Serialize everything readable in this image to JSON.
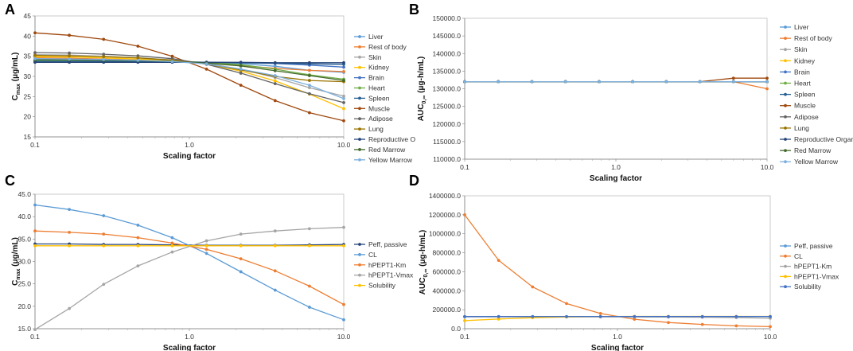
{
  "chart_data": [
    {
      "id": "A",
      "panel_label": "A",
      "type": "line",
      "xlabel": "Scaling factor",
      "ylabel": "Cmax (μg/mL)",
      "ylabel_parts": {
        "main": "C",
        "sub": "max",
        "rest": " (μg/mL)"
      },
      "x_scale": "log",
      "xlim": [
        0.1,
        10
      ],
      "ylim": [
        15,
        45
      ],
      "x_ticks": [
        0.1,
        1,
        10
      ],
      "x_tick_labels": [
        "0.1",
        "1.0",
        "10.0"
      ],
      "y_ticks": [
        15,
        20,
        25,
        30,
        35,
        40,
        45
      ],
      "y_tick_labels": [
        "15",
        "20",
        "25",
        "30",
        "35",
        "40",
        "45"
      ],
      "x": [
        0.1,
        0.1668,
        0.2783,
        0.4642,
        0.7743,
        1.2915,
        2.1544,
        3.5938,
        5.9948,
        10.0
      ],
      "series": [
        {
          "name": "Liver",
          "color": "#5B9BD5",
          "values": [
            33.8,
            33.8,
            33.8,
            33.7,
            33.6,
            33.5,
            33.2,
            32.5,
            31.5,
            31.0
          ]
        },
        {
          "name": "Rest of body",
          "color": "#ED7D31",
          "values": [
            34.6,
            34.5,
            34.3,
            34.1,
            33.8,
            33.4,
            32.7,
            32.0,
            31.5,
            31.2
          ]
        },
        {
          "name": "Skin",
          "color": "#A5A5A5",
          "values": [
            35.4,
            35.3,
            35.0,
            34.6,
            34.1,
            33.2,
            31.8,
            29.7,
            27.2,
            25.1
          ]
        },
        {
          "name": "Kidney",
          "color": "#FFC000",
          "values": [
            34.9,
            34.8,
            34.6,
            34.3,
            33.9,
            33.1,
            31.3,
            28.9,
            25.6,
            22.0
          ]
        },
        {
          "name": "Brain",
          "color": "#4472C4",
          "values": [
            33.6,
            33.6,
            33.6,
            33.6,
            33.6,
            33.5,
            33.4,
            33.2,
            32.8,
            32.3
          ]
        },
        {
          "name": "Heart",
          "color": "#70AD47",
          "values": [
            34.0,
            34.0,
            34.0,
            33.9,
            33.8,
            33.5,
            32.9,
            31.8,
            30.4,
            29.3
          ]
        },
        {
          "name": "Spleen",
          "color": "#255E91",
          "values": [
            33.7,
            33.7,
            33.7,
            33.7,
            33.6,
            33.5,
            33.4,
            33.3,
            33.1,
            33.0
          ]
        },
        {
          "name": "Muscle",
          "color": "#9E480E",
          "values": [
            40.8,
            40.2,
            39.2,
            37.5,
            35.0,
            31.8,
            27.8,
            24.0,
            21.0,
            19.0
          ]
        },
        {
          "name": "Adipose",
          "color": "#636363",
          "values": [
            35.9,
            35.8,
            35.5,
            35.1,
            34.4,
            33.0,
            30.8,
            28.2,
            25.7,
            23.5
          ]
        },
        {
          "name": "Lung",
          "color": "#997300",
          "values": [
            35.2,
            35.1,
            34.9,
            34.6,
            34.0,
            33.1,
            31.6,
            30.0,
            29.0,
            28.7
          ]
        },
        {
          "name": "Reproductive O",
          "color": "#264478",
          "values": [
            33.5,
            33.5,
            33.5,
            33.5,
            33.5,
            33.5,
            33.5,
            33.4,
            33.4,
            33.4
          ]
        },
        {
          "name": "Red Marrow",
          "color": "#43682B",
          "values": [
            34.1,
            34.1,
            34.0,
            33.9,
            33.7,
            33.3,
            32.6,
            31.4,
            30.2,
            29.0
          ]
        },
        {
          "name": "Yellow Marrow",
          "color": "#7CAFDD",
          "values": [
            34.4,
            34.3,
            34.2,
            34.0,
            33.7,
            33.1,
            31.8,
            30.2,
            27.8,
            24.5
          ]
        }
      ]
    },
    {
      "id": "B",
      "panel_label": "B",
      "type": "line",
      "xlabel": "Scaling factor",
      "ylabel": "AUC0,∞ (μg-h/mL)",
      "ylabel_parts": {
        "main": "AUC",
        "sub": "0,∞",
        "rest": " (μg-h/mL)"
      },
      "x_scale": "log",
      "xlim": [
        0.1,
        10
      ],
      "ylim": [
        110000,
        150000
      ],
      "x_ticks": [
        0.1,
        1,
        10
      ],
      "x_tick_labels": [
        "0.1",
        "1.0",
        "10.0"
      ],
      "y_ticks": [
        110000,
        115000,
        120000,
        125000,
        130000,
        135000,
        140000,
        145000,
        150000
      ],
      "y_tick_labels": [
        "110000.0",
        "115000.0",
        "120000.0",
        "125000.0",
        "130000.0",
        "135000.0",
        "140000.0",
        "145000.0",
        "150000.0"
      ],
      "x": [
        0.1,
        0.1668,
        0.2783,
        0.4642,
        0.7743,
        1.2915,
        2.1544,
        3.5938,
        5.9948,
        10.0
      ],
      "series": [
        {
          "name": "Liver",
          "color": "#5B9BD5",
          "values": [
            132000,
            132000,
            132000,
            132000,
            132000,
            132000,
            132000,
            132000,
            132000,
            132000
          ]
        },
        {
          "name": "Rest of body",
          "color": "#ED7D31",
          "values": [
            132000,
            132000,
            132000,
            132000,
            132000,
            132000,
            132000,
            132000,
            132000,
            130000
          ]
        },
        {
          "name": "Skin",
          "color": "#A5A5A5",
          "values": [
            132000,
            132000,
            132000,
            132000,
            132000,
            132000,
            132000,
            132000,
            132000,
            132000
          ]
        },
        {
          "name": "Kidney",
          "color": "#FFC000",
          "values": [
            132000,
            132000,
            132000,
            132000,
            132000,
            132000,
            132000,
            132000,
            132000,
            132000
          ]
        },
        {
          "name": "Brain",
          "color": "#4472C4",
          "values": [
            132000,
            132000,
            132000,
            132000,
            132000,
            132000,
            132000,
            132000,
            132000,
            132000
          ]
        },
        {
          "name": "Heart",
          "color": "#70AD47",
          "values": [
            132000,
            132000,
            132000,
            132000,
            132000,
            132000,
            132000,
            132000,
            132000,
            132000
          ]
        },
        {
          "name": "Spleen",
          "color": "#255E91",
          "values": [
            132000,
            132000,
            132000,
            132000,
            132000,
            132000,
            132000,
            132000,
            132000,
            132000
          ]
        },
        {
          "name": "Muscle",
          "color": "#9E480E",
          "values": [
            132000,
            132000,
            132000,
            132000,
            132000,
            132000,
            132000,
            132000,
            133000,
            133000
          ]
        },
        {
          "name": "Adipose",
          "color": "#636363",
          "values": [
            132000,
            132000,
            132000,
            132000,
            132000,
            132000,
            132000,
            132000,
            132000,
            132000
          ]
        },
        {
          "name": "Lung",
          "color": "#997300",
          "values": [
            132000,
            132000,
            132000,
            132000,
            132000,
            132000,
            132000,
            132000,
            132000,
            132000
          ]
        },
        {
          "name": "Reproductive Organ",
          "color": "#264478",
          "values": [
            132000,
            132000,
            132000,
            132000,
            132000,
            132000,
            132000,
            132000,
            132000,
            132000
          ]
        },
        {
          "name": "Red Marrow",
          "color": "#43682B",
          "values": [
            132000,
            132000,
            132000,
            132000,
            132000,
            132000,
            132000,
            132000,
            132000,
            132000
          ]
        },
        {
          "name": "Yellow Marrow",
          "color": "#7CAFDD",
          "values": [
            132000,
            132000,
            132000,
            132000,
            132000,
            132000,
            132000,
            132000,
            132000,
            132000
          ]
        }
      ]
    },
    {
      "id": "C",
      "panel_label": "C",
      "type": "line",
      "xlabel": "Scaling factor",
      "ylabel": "Cmax (μg/mL)",
      "ylabel_parts": {
        "main": "C",
        "sub": "max",
        "rest": " (μg/mL)"
      },
      "x_scale": "log",
      "xlim": [
        0.1,
        10
      ],
      "ylim": [
        15,
        45
      ],
      "x_ticks": [
        0.1,
        1,
        10
      ],
      "x_tick_labels": [
        "0.1",
        "1.0",
        "10.0"
      ],
      "y_ticks": [
        15,
        20,
        25,
        30,
        35,
        40,
        45
      ],
      "y_tick_labels": [
        "15.0",
        "20.0",
        "25.0",
        "30.0",
        "35.0",
        "40.0",
        "45.0"
      ],
      "x": [
        0.1,
        0.1668,
        0.2783,
        0.4642,
        0.7743,
        1.2915,
        2.1544,
        3.5938,
        5.9948,
        10.0
      ],
      "series": [
        {
          "name": "Peff, passive",
          "color": "#264478",
          "values": [
            33.9,
            33.9,
            33.8,
            33.8,
            33.7,
            33.6,
            33.6,
            33.6,
            33.7,
            33.8
          ]
        },
        {
          "name": "CL",
          "color": "#5B9BD5",
          "values": [
            42.6,
            41.6,
            40.2,
            38.1,
            35.3,
            31.8,
            27.7,
            23.6,
            19.8,
            17.0
          ]
        },
        {
          "name": "hPEPT1-Km",
          "color": "#ED7D31",
          "values": [
            36.8,
            36.5,
            36.1,
            35.3,
            34.1,
            32.7,
            30.6,
            27.9,
            24.5,
            20.4
          ]
        },
        {
          "name": "hPEPT1-Vmax",
          "color": "#A5A5A5",
          "values": [
            14.8,
            19.5,
            24.9,
            29.0,
            32.1,
            34.6,
            36.1,
            36.8,
            37.3,
            37.6
          ]
        },
        {
          "name": "Solubility",
          "color": "#FFC000",
          "values": [
            33.5,
            33.5,
            33.5,
            33.5,
            33.5,
            33.5,
            33.5,
            33.5,
            33.5,
            33.5
          ]
        }
      ]
    },
    {
      "id": "D",
      "panel_label": "D",
      "type": "line",
      "xlabel": "Scaling factor",
      "ylabel": "AUC0,∞ (μg-h/mL)",
      "ylabel_parts": {
        "main": "AUC",
        "sub": "0,∞",
        "rest": " (μg-h/mL)"
      },
      "x_scale": "log",
      "xlim": [
        0.1,
        10
      ],
      "ylim": [
        0,
        1400000
      ],
      "x_ticks": [
        0.1,
        1,
        10
      ],
      "x_tick_labels": [
        "0.1",
        "1.0",
        "10.0"
      ],
      "y_ticks": [
        0,
        200000,
        400000,
        600000,
        800000,
        1000000,
        1200000,
        1400000
      ],
      "y_tick_labels": [
        "0.0",
        "200000.0",
        "400000.0",
        "600000.0",
        "800000.0",
        "1000000.0",
        "1200000.0",
        "1400000.0"
      ],
      "x": [
        0.1,
        0.1668,
        0.2783,
        0.4642,
        0.7743,
        1.2915,
        2.1544,
        3.5938,
        5.9948,
        10.0
      ],
      "series": [
        {
          "name": "Peff, passive",
          "color": "#5B9BD5",
          "values": [
            128000,
            128000,
            128000,
            128000,
            128000,
            128000,
            128000,
            128000,
            128000,
            128000
          ]
        },
        {
          "name": "CL",
          "color": "#ED7D31",
          "values": [
            1200000,
            720000,
            440000,
            265000,
            160000,
            100000,
            65000,
            45000,
            30000,
            22000
          ]
        },
        {
          "name": "hPEPT1-Km",
          "color": "#A5A5A5",
          "values": [
            125000,
            125000,
            125000,
            125000,
            125000,
            124000,
            123000,
            121000,
            117000,
            110000
          ]
        },
        {
          "name": "hPEPT1-Vmax",
          "color": "#FFC000",
          "values": [
            85000,
            102000,
            116000,
            124000,
            128000,
            130000,
            130000,
            130000,
            130000,
            130000
          ]
        },
        {
          "name": "Solubility",
          "color": "#4472C4",
          "values": [
            128000,
            128000,
            128000,
            128000,
            128000,
            128000,
            128000,
            128000,
            128000,
            128000
          ]
        }
      ]
    }
  ]
}
